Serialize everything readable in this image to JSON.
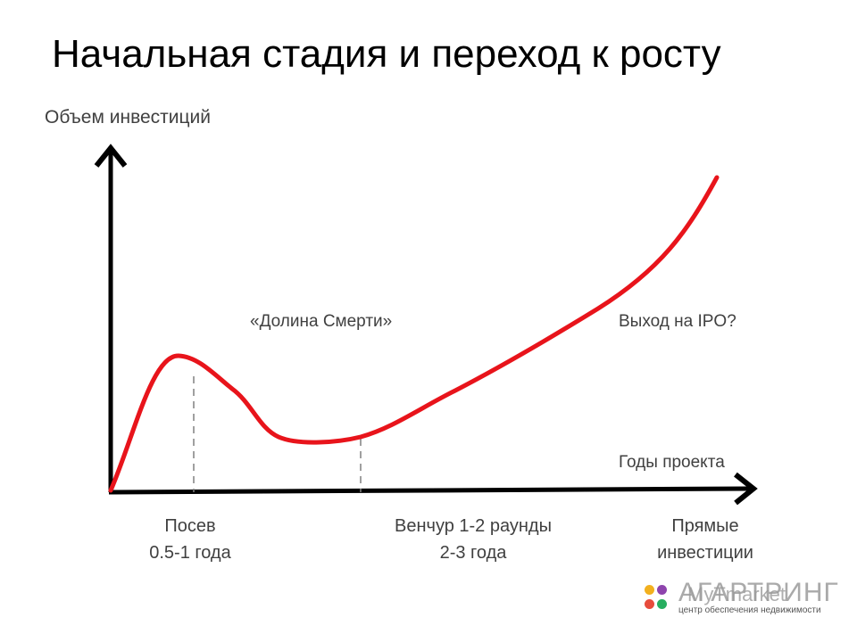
{
  "title": "Начальная стадия и переход к росту",
  "axes": {
    "y_label": "Объем инвестиций",
    "x_label": "Годы проекта"
  },
  "annotations": {
    "valley": "«Долина Смерти»",
    "ipo": "Выход на IPO?"
  },
  "stages": [
    {
      "name": "Посев",
      "duration": "0.5-1 года"
    },
    {
      "name": "Венчур 1-2 раунды",
      "duration": "2-3 года"
    },
    {
      "name": "Прямые",
      "duration": "инвестиции"
    }
  ],
  "logo": {
    "word": "АГАРТРИНГ",
    "word2": "MyTmarket",
    "tagline": "центр обеспечения недвижимости"
  },
  "colors": {
    "curve": "#e8141b",
    "axis": "#000000",
    "guide": "#808080",
    "text": "#404040"
  }
}
